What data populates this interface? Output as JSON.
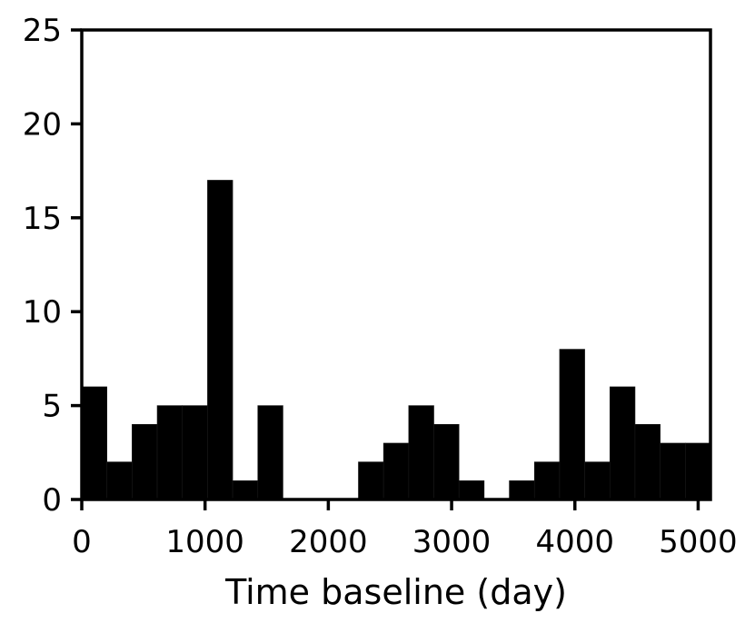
{
  "chart_data": {
    "type": "bar",
    "subtype": "histogram",
    "title": "",
    "xlabel": "Time baseline (day)",
    "ylabel": "",
    "xlim": [
      0,
      5100
    ],
    "ylim": [
      0,
      25
    ],
    "bin_width": 204,
    "bin_edges_start": [
      0,
      204,
      408,
      612,
      816,
      1020,
      1224,
      1428,
      1632,
      1836,
      2040,
      2244,
      2448,
      2652,
      2856,
      3060,
      3264,
      3468,
      3672,
      3876,
      4080,
      4284,
      4488,
      4692,
      4896
    ],
    "values": [
      6,
      2,
      4,
      5,
      5,
      17,
      1,
      5,
      0,
      0,
      0,
      2,
      3,
      5,
      4,
      1,
      0,
      1,
      2,
      8,
      2,
      6,
      4,
      3,
      3
    ],
    "xticks": [
      0,
      1000,
      2000,
      3000,
      4000,
      5000
    ],
    "xtick_labels": [
      "0",
      "1000",
      "2000",
      "3000",
      "4000",
      "5000"
    ],
    "yticks": [
      0,
      5,
      10,
      15,
      20,
      25
    ],
    "ytick_labels": [
      "0",
      "5",
      "10",
      "15",
      "20",
      "25"
    ],
    "bar_color": "#000000",
    "grid": false
  }
}
